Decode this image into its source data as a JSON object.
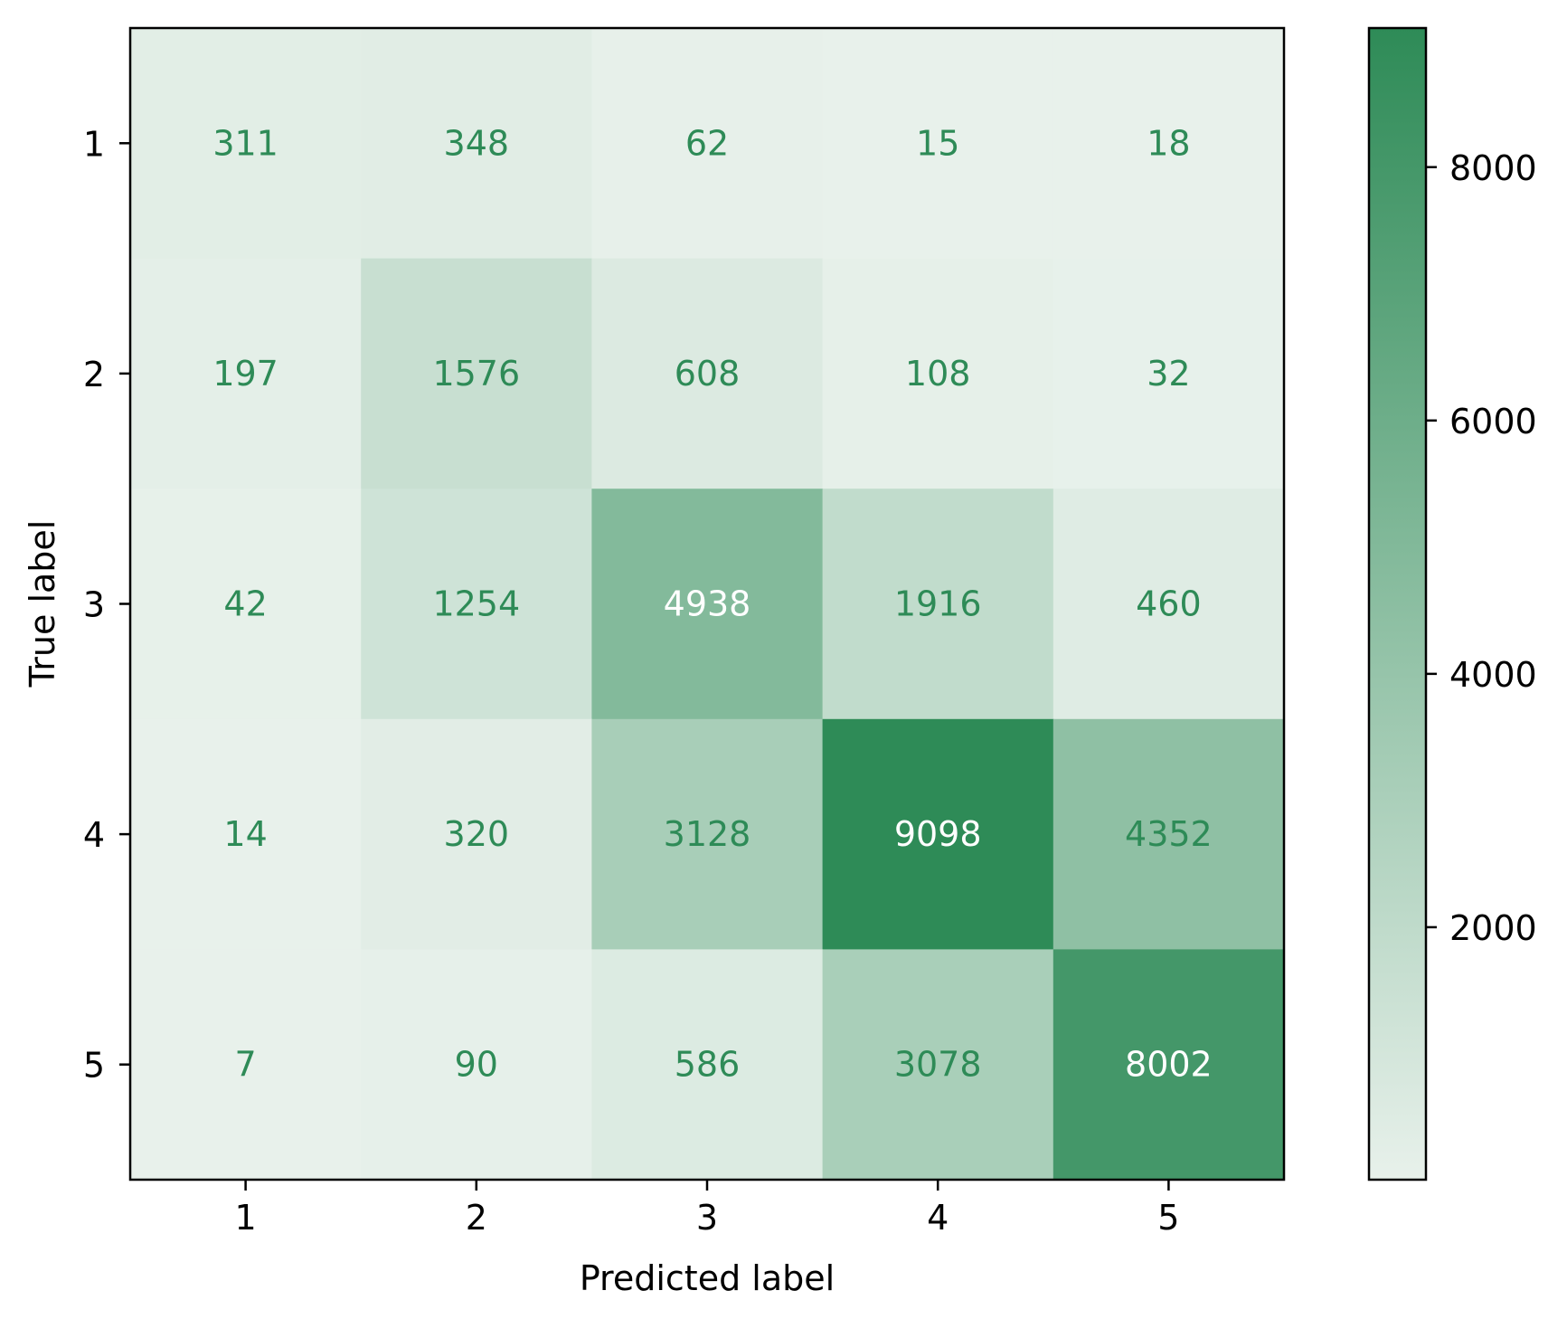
{
  "chart_data": {
    "type": "heatmap",
    "title": "",
    "xlabel": "Predicted label",
    "ylabel": "True label",
    "x_categories": [
      "1",
      "2",
      "3",
      "4",
      "5"
    ],
    "y_categories": [
      "1",
      "2",
      "3",
      "4",
      "5"
    ],
    "values": [
      [
        311,
        348,
        62,
        15,
        18
      ],
      [
        197,
        1576,
        608,
        108,
        32
      ],
      [
        42,
        1254,
        4938,
        1916,
        460
      ],
      [
        14,
        320,
        3128,
        9098,
        4352
      ],
      [
        7,
        90,
        586,
        3078,
        8002
      ]
    ],
    "colorbar": {
      "vmin": 7,
      "vmax": 9098,
      "ticks": [
        2000,
        4000,
        6000,
        8000
      ],
      "tick_labels": [
        "2000",
        "4000",
        "6000",
        "8000"
      ]
    },
    "colors": {
      "low": "#e8f1eb",
      "high": "#2e8b57",
      "text_on_light": "#2e8b57",
      "text_on_dark": "#ffffff"
    }
  }
}
